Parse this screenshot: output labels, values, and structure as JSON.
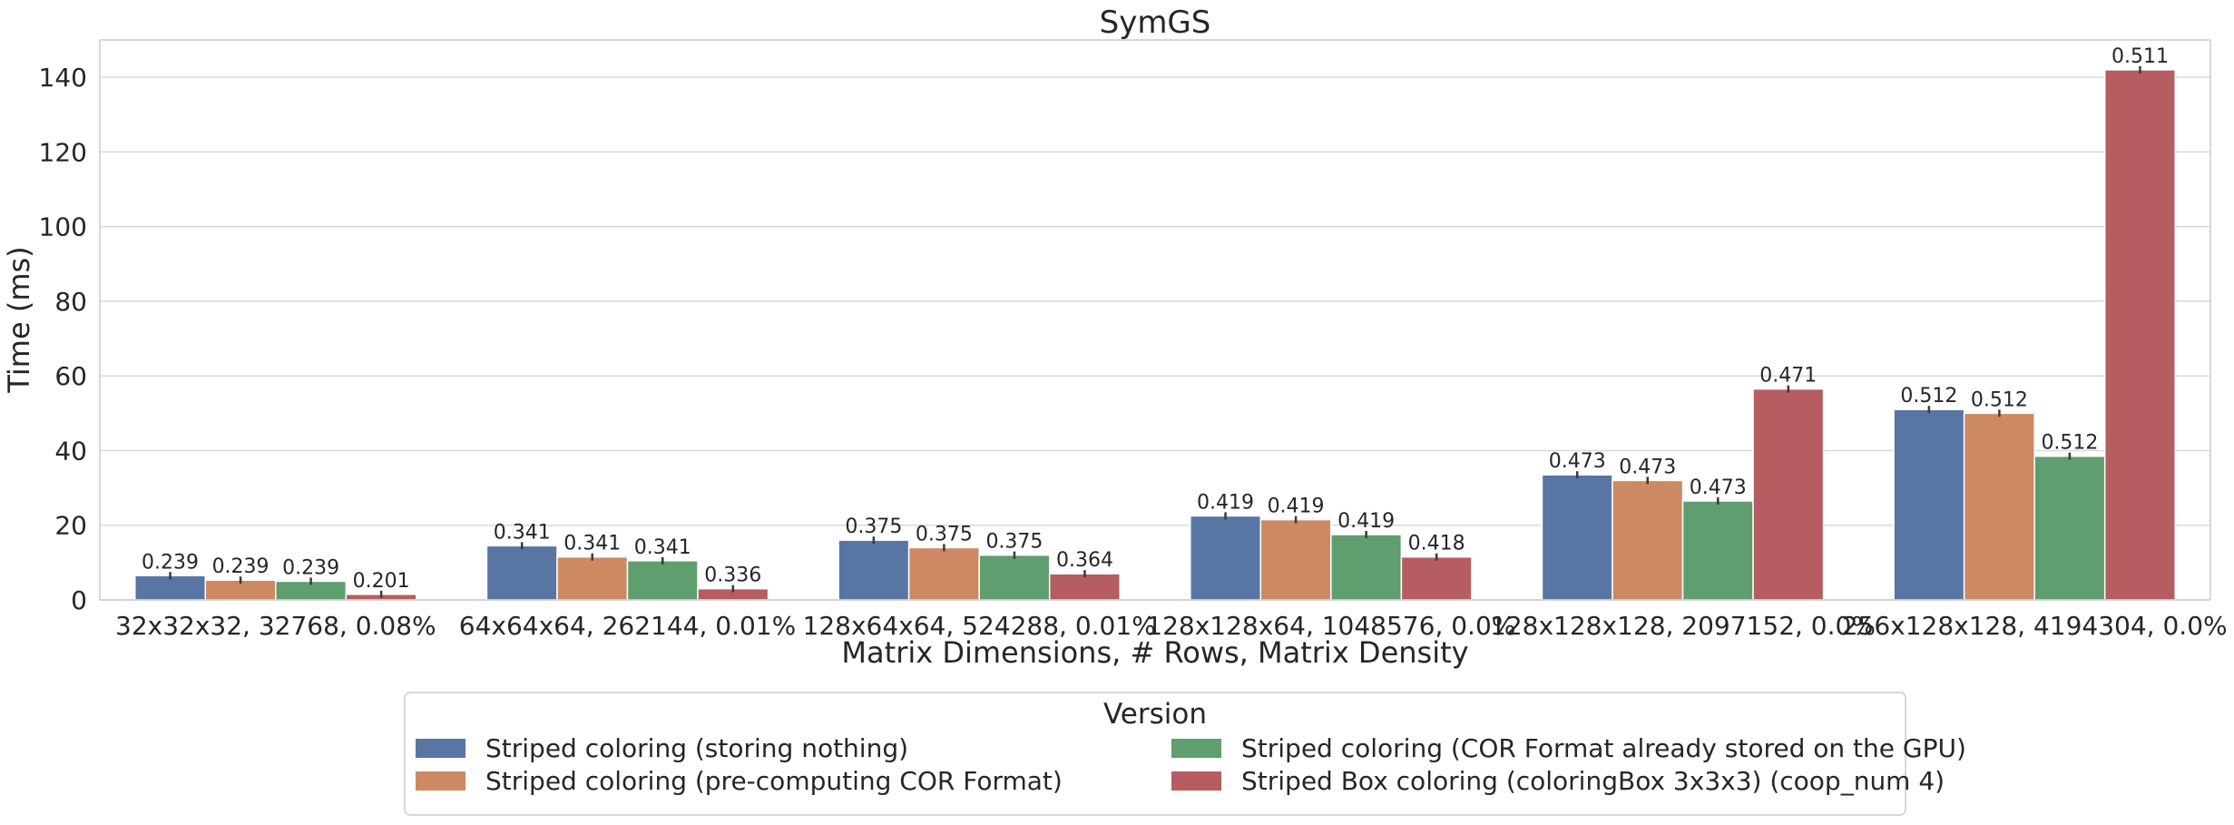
{
  "chart_data": {
    "type": "bar",
    "title": "SymGS",
    "xlabel": "Matrix Dimensions, # Rows, Matrix Density",
    "ylabel": "Time (ms)",
    "ylim": [
      0,
      150
    ],
    "yticks": [
      0,
      20,
      40,
      60,
      80,
      100,
      120,
      140
    ],
    "grid": true,
    "legend_title": "Version",
    "legend_position": "bottom-center",
    "categories": [
      "32x32x32, 32768, 0.08%",
      "64x64x64, 262144, 0.01%",
      "128x64x64, 524288, 0.01%",
      "128x128x64, 1048576, 0.0%",
      "128x128x128, 2097152, 0.0%",
      "256x128x128, 4194304, 0.0%"
    ],
    "series": [
      {
        "name": "Striped coloring (storing nothing)",
        "color": "#5875a4",
        "values": [
          6.5,
          14.5,
          16.0,
          22.5,
          33.5,
          51.0
        ],
        "labels": [
          "0.239",
          "0.341",
          "0.375",
          "0.419",
          "0.473",
          "0.512"
        ]
      },
      {
        "name": "Striped coloring (pre-computing COR Format)",
        "color": "#cc8963",
        "values": [
          5.3,
          11.5,
          14.0,
          21.5,
          32.0,
          50.0
        ],
        "labels": [
          "0.239",
          "0.341",
          "0.375",
          "0.419",
          "0.473",
          "0.512"
        ]
      },
      {
        "name": "Striped coloring (COR Format already stored on the GPU)",
        "color": "#5f9e6e",
        "values": [
          5.0,
          10.5,
          12.0,
          17.5,
          26.5,
          38.5
        ],
        "labels": [
          "0.239",
          "0.341",
          "0.375",
          "0.419",
          "0.473",
          "0.512"
        ]
      },
      {
        "name": "Striped Box coloring (coloringBox 3x3x3) (coop_num 4)",
        "color": "#b55d60",
        "values": [
          1.5,
          3.0,
          7.0,
          11.5,
          56.5,
          142.0
        ],
        "labels": [
          "0.201",
          "0.336",
          "0.364",
          "0.418",
          "0.471",
          "0.511"
        ]
      }
    ]
  }
}
